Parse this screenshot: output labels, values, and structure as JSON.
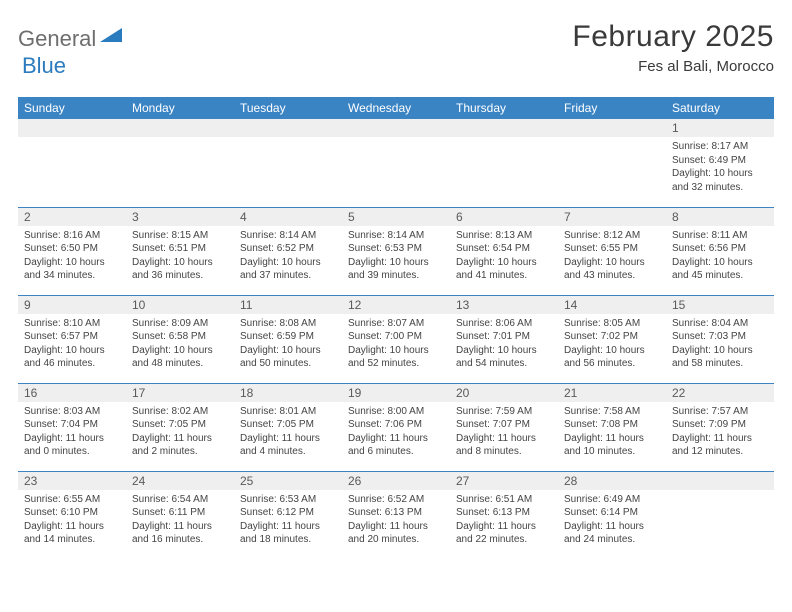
{
  "logo": {
    "word1": "General",
    "word2": "Blue"
  },
  "title": "February 2025",
  "location": "Fes al Bali, Morocco",
  "colors": {
    "header_bg": "#3b84c4",
    "header_fg": "#ffffff",
    "daynum_bg": "#efefef",
    "border": "#3b84c4",
    "logo_gray": "#6e6e6e",
    "logo_blue": "#2b7bbf"
  },
  "weekdays": [
    "Sunday",
    "Monday",
    "Tuesday",
    "Wednesday",
    "Thursday",
    "Friday",
    "Saturday"
  ],
  "weeks": [
    [
      null,
      null,
      null,
      null,
      null,
      null,
      {
        "n": "1",
        "sr": "8:17 AM",
        "ss": "6:49 PM",
        "dl": "10 hours and 32 minutes."
      }
    ],
    [
      {
        "n": "2",
        "sr": "8:16 AM",
        "ss": "6:50 PM",
        "dl": "10 hours and 34 minutes."
      },
      {
        "n": "3",
        "sr": "8:15 AM",
        "ss": "6:51 PM",
        "dl": "10 hours and 36 minutes."
      },
      {
        "n": "4",
        "sr": "8:14 AM",
        "ss": "6:52 PM",
        "dl": "10 hours and 37 minutes."
      },
      {
        "n": "5",
        "sr": "8:14 AM",
        "ss": "6:53 PM",
        "dl": "10 hours and 39 minutes."
      },
      {
        "n": "6",
        "sr": "8:13 AM",
        "ss": "6:54 PM",
        "dl": "10 hours and 41 minutes."
      },
      {
        "n": "7",
        "sr": "8:12 AM",
        "ss": "6:55 PM",
        "dl": "10 hours and 43 minutes."
      },
      {
        "n": "8",
        "sr": "8:11 AM",
        "ss": "6:56 PM",
        "dl": "10 hours and 45 minutes."
      }
    ],
    [
      {
        "n": "9",
        "sr": "8:10 AM",
        "ss": "6:57 PM",
        "dl": "10 hours and 46 minutes."
      },
      {
        "n": "10",
        "sr": "8:09 AM",
        "ss": "6:58 PM",
        "dl": "10 hours and 48 minutes."
      },
      {
        "n": "11",
        "sr": "8:08 AM",
        "ss": "6:59 PM",
        "dl": "10 hours and 50 minutes."
      },
      {
        "n": "12",
        "sr": "8:07 AM",
        "ss": "7:00 PM",
        "dl": "10 hours and 52 minutes."
      },
      {
        "n": "13",
        "sr": "8:06 AM",
        "ss": "7:01 PM",
        "dl": "10 hours and 54 minutes."
      },
      {
        "n": "14",
        "sr": "8:05 AM",
        "ss": "7:02 PM",
        "dl": "10 hours and 56 minutes."
      },
      {
        "n": "15",
        "sr": "8:04 AM",
        "ss": "7:03 PM",
        "dl": "10 hours and 58 minutes."
      }
    ],
    [
      {
        "n": "16",
        "sr": "8:03 AM",
        "ss": "7:04 PM",
        "dl": "11 hours and 0 minutes."
      },
      {
        "n": "17",
        "sr": "8:02 AM",
        "ss": "7:05 PM",
        "dl": "11 hours and 2 minutes."
      },
      {
        "n": "18",
        "sr": "8:01 AM",
        "ss": "7:05 PM",
        "dl": "11 hours and 4 minutes."
      },
      {
        "n": "19",
        "sr": "8:00 AM",
        "ss": "7:06 PM",
        "dl": "11 hours and 6 minutes."
      },
      {
        "n": "20",
        "sr": "7:59 AM",
        "ss": "7:07 PM",
        "dl": "11 hours and 8 minutes."
      },
      {
        "n": "21",
        "sr": "7:58 AM",
        "ss": "7:08 PM",
        "dl": "11 hours and 10 minutes."
      },
      {
        "n": "22",
        "sr": "7:57 AM",
        "ss": "7:09 PM",
        "dl": "11 hours and 12 minutes."
      }
    ],
    [
      {
        "n": "23",
        "sr": "6:55 AM",
        "ss": "6:10 PM",
        "dl": "11 hours and 14 minutes."
      },
      {
        "n": "24",
        "sr": "6:54 AM",
        "ss": "6:11 PM",
        "dl": "11 hours and 16 minutes."
      },
      {
        "n": "25",
        "sr": "6:53 AM",
        "ss": "6:12 PM",
        "dl": "11 hours and 18 minutes."
      },
      {
        "n": "26",
        "sr": "6:52 AM",
        "ss": "6:13 PM",
        "dl": "11 hours and 20 minutes."
      },
      {
        "n": "27",
        "sr": "6:51 AM",
        "ss": "6:13 PM",
        "dl": "11 hours and 22 minutes."
      },
      {
        "n": "28",
        "sr": "6:49 AM",
        "ss": "6:14 PM",
        "dl": "11 hours and 24 minutes."
      },
      null
    ]
  ],
  "labels": {
    "sunrise": "Sunrise:",
    "sunset": "Sunset:",
    "daylight": "Daylight:"
  }
}
